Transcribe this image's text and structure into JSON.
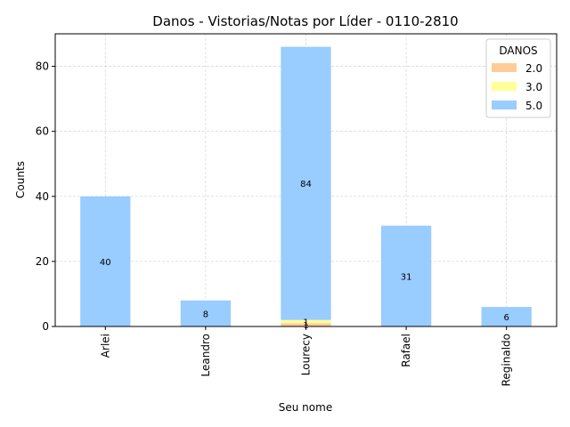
{
  "chart_data": {
    "type": "bar",
    "stacked": true,
    "title": "Danos - Vistorias/Notas por Líder - 0110-2810",
    "xlabel": "Seu nome",
    "ylabel": "Counts",
    "categories": [
      "Arlei",
      "Leandro",
      "Lourecy",
      "Rafael",
      "Reginaldo"
    ],
    "ylim": [
      0,
      90
    ],
    "yticks": [
      0,
      20,
      40,
      60,
      80
    ],
    "grid": true,
    "legend": {
      "title": "DANOS",
      "placement": "top-right"
    },
    "series": [
      {
        "name": "2.0",
        "color": "#ffcc99",
        "values": [
          0,
          0,
          1,
          0,
          0
        ],
        "labels": [
          "",
          "",
          "1",
          "",
          ""
        ]
      },
      {
        "name": "3.0",
        "color": "#ffff99",
        "values": [
          0,
          0,
          1,
          0,
          0
        ],
        "labels": [
          "",
          "",
          "1",
          "",
          ""
        ]
      },
      {
        "name": "5.0",
        "color": "#99ccff",
        "values": [
          40,
          8,
          84,
          31,
          6
        ],
        "labels": [
          "40",
          "8",
          "84",
          "31",
          "6"
        ]
      }
    ]
  }
}
